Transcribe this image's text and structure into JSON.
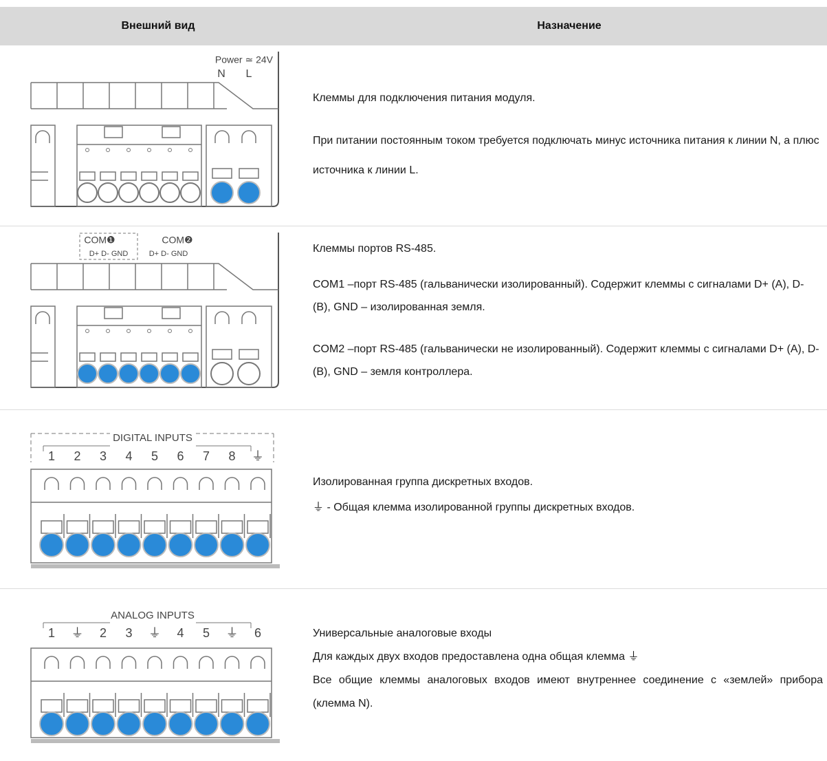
{
  "header": {
    "columns": [
      "Внешний вид",
      "Назначение"
    ]
  },
  "rows": [
    {
      "image": {
        "labels": [
          "Power ≃ 24V",
          "N",
          "L"
        ]
      },
      "description": [
        "Клеммы для подключения питания модуля.",
        "При питании постоянным током требуется подключать минус источника питания к линии N, а плюс источника к линии L."
      ]
    },
    {
      "image": {
        "labels": [
          "COM❶",
          "COM❷",
          "D+ D- GND",
          "D+ D- GND"
        ]
      },
      "description": [
        "Клеммы портов RS-485.",
        "COM1 –порт RS-485 (гальванически изолированный). Содержит клеммы с сигналами D+ (A), D- (B), GND – изолированная земля.",
        "COM2 –порт RS-485 (гальванически не изолированный). Содержит клеммы с сигналами D+ (A), D- (B), GND – земля контроллера."
      ]
    },
    {
      "image": {
        "title": "DIGITAL INPUTS",
        "terminals": [
          "1",
          "2",
          "3",
          "4",
          "5",
          "6",
          "7",
          "8",
          "⏚"
        ]
      },
      "description": [
        "Изолированная группа дискретных входов.",
        "⏚ - Общая клемма изолированной группы дискретных входов."
      ]
    },
    {
      "image": {
        "title": "ANALOG INPUTS",
        "terminals": [
          "1",
          "⏚",
          "2",
          "3",
          "⏚",
          "4",
          "5",
          "⏚",
          "6"
        ]
      },
      "description": [
        "Универсальные аналоговые входы",
        "Для каждых двух входов предоставлена одна общая клемма ⏚",
        "Все общие клеммы аналоговых входов имеют внутреннее соединение с «землей» прибора (клемма N)."
      ]
    }
  ]
}
